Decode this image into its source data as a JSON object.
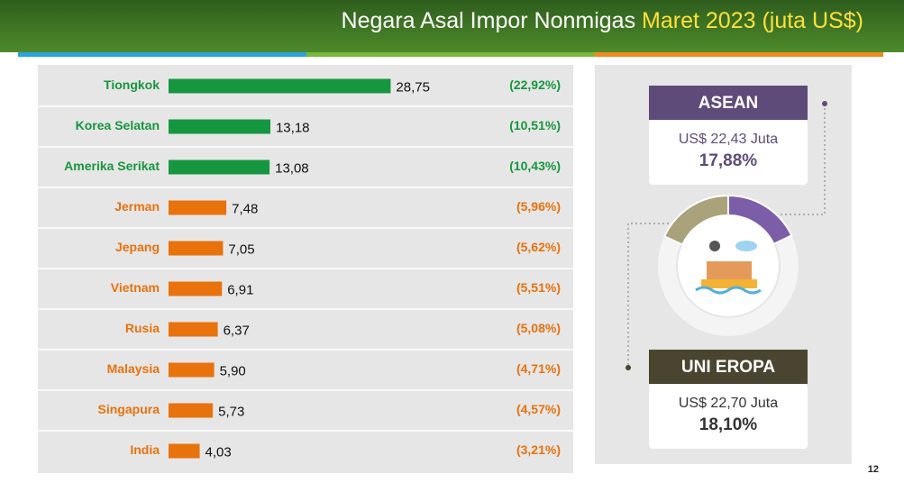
{
  "chart_data": [
    {
      "type": "bar",
      "title": "Negara Asal Impor Nonmigas",
      "title_highlight": "Maret 2023 (juta US$)",
      "categories": [
        "Tiongkok",
        "Korea Selatan",
        "Amerika Serikat",
        "Jerman",
        "Jepang",
        "Vietnam",
        "Rusia",
        "Malaysia",
        "Singapura",
        "India"
      ],
      "values": [
        28.75,
        13.18,
        13.08,
        7.48,
        7.05,
        6.91,
        6.37,
        5.9,
        5.73,
        4.03
      ],
      "value_labels": [
        "28,75",
        "13,18",
        "13,08",
        "7,48",
        "7,05",
        "6,91",
        "6,37",
        "5,90",
        "5,73",
        "4,03"
      ],
      "shares": [
        22.92,
        10.51,
        10.43,
        5.96,
        5.62,
        5.51,
        5.08,
        4.71,
        4.57,
        3.21
      ],
      "share_labels": [
        "(22,92%)",
        "(10,51%)",
        "(10,43%)",
        "(5,96%)",
        "(5,62%)",
        "(5,51%)",
        "(5,08%)",
        "(4,71%)",
        "(4,57%)",
        "(3,21%)"
      ],
      "colors": [
        "#16963e",
        "#16963e",
        "#16963e",
        "#e8720c",
        "#e8720c",
        "#e8720c",
        "#e8720c",
        "#e8720c",
        "#e8720c",
        "#e8720c"
      ],
      "xlim": [
        0,
        35
      ]
    },
    {
      "type": "donut",
      "categories": [
        "ASEAN",
        "UNI EROPA"
      ],
      "values": [
        17.88,
        18.1
      ],
      "value_labels": [
        "17,88%",
        "18,10%"
      ],
      "amounts": [
        22.43,
        22.7
      ],
      "amount_labels": [
        "US$ 22,43 Juta",
        "US$ 22,70 Juta"
      ],
      "colors": [
        "#7b5ea7",
        "#a9a27a"
      ],
      "header_colors": [
        "#5f4b7a",
        "#4a4530"
      ]
    }
  ],
  "page_number": "12"
}
